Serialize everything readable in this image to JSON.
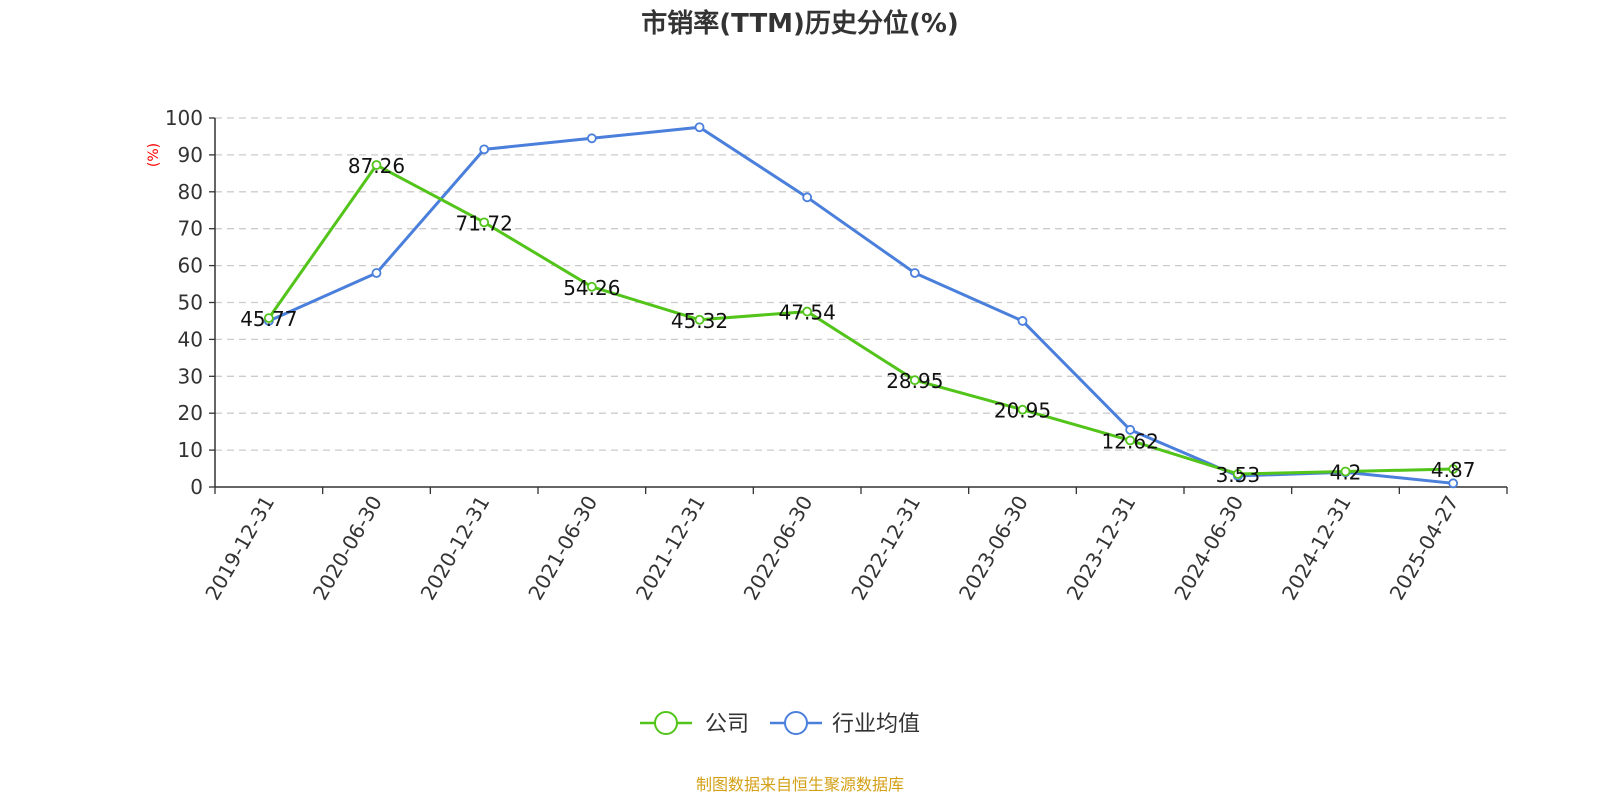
{
  "chart_data": {
    "type": "line",
    "title": "市销率(TTM)历史分位(%)",
    "ylabel": "(%)",
    "xlabel": "",
    "ylim": [
      0,
      100
    ],
    "yticks": [
      "0",
      "10",
      "20",
      "30",
      "40",
      "50",
      "60",
      "70",
      "80",
      "90",
      "100"
    ],
    "grid": true,
    "legend_position": "bottom-center",
    "categories": [
      "2019-12-31",
      "2020-06-30",
      "2020-12-31",
      "2021-06-30",
      "2021-12-31",
      "2022-06-30",
      "2022-12-31",
      "2023-06-30",
      "2023-12-31",
      "2024-06-30",
      "2024-12-31",
      "2025-04-27"
    ],
    "series": [
      {
        "name": "公司",
        "color": "#52c41a",
        "values": [
          45.77,
          87.26,
          71.72,
          54.26,
          45.32,
          47.54,
          28.95,
          20.95,
          12.62,
          3.53,
          4.2,
          4.87
        ],
        "labels": [
          "45.77",
          "87.26",
          "71.72",
          "54.26",
          "45.32",
          "47.54",
          "28.95",
          "20.95",
          "12.62",
          "3.53",
          "4.2",
          "4.87"
        ]
      },
      {
        "name": "行业均值",
        "color": "#4a7fdb",
        "values": [
          45,
          58,
          91.5,
          94.5,
          97.5,
          78.5,
          58,
          45,
          15.5,
          3,
          4,
          1
        ]
      }
    ]
  },
  "source_text": "制图数据来自恒生聚源数据库"
}
